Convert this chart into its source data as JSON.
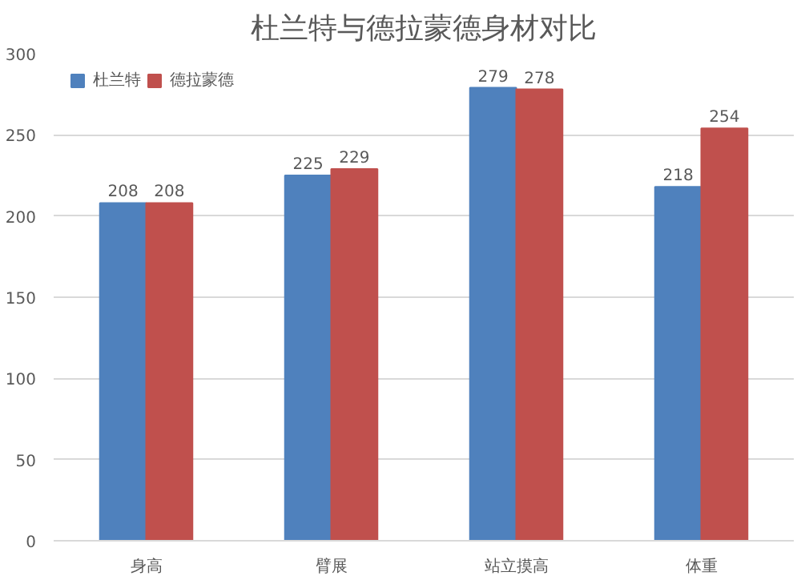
{
  "chart_data": {
    "type": "bar",
    "title": "杜兰特与德拉蒙德身材对比",
    "categories": [
      "身高",
      "臂展",
      "站立摸高",
      "体重"
    ],
    "series": [
      {
        "name": "杜兰特",
        "color": "#4f81bd",
        "values": [
          208,
          225,
          279,
          218
        ]
      },
      {
        "name": "德拉蒙德",
        "color": "#c0504d",
        "values": [
          208,
          229,
          278,
          254
        ]
      }
    ],
    "ylim": [
      0,
      300
    ],
    "yticks": [
      0,
      50,
      100,
      150,
      200,
      250,
      300
    ],
    "grid": "y",
    "legend": "top left",
    "data_labels": true
  }
}
